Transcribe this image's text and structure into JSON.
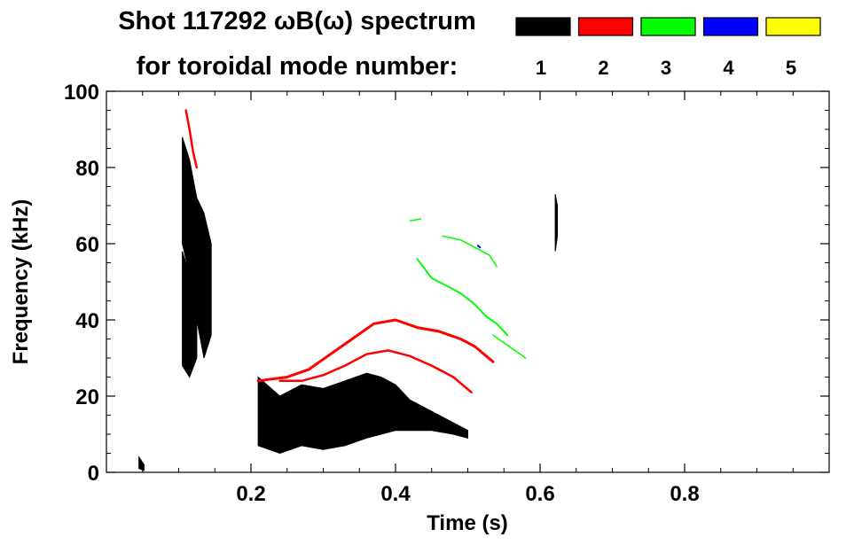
{
  "chart_data": {
    "type": "heatmap",
    "title_line1": "Shot 117292 ωB(ω) spectrum",
    "title_line2": "for toroidal mode number:",
    "xlabel": "Time (s)",
    "ylabel": "Frequency (kHz)",
    "xlim": [
      0.0,
      1.0
    ],
    "ylim": [
      0,
      100
    ],
    "x_ticks": [
      0.2,
      0.4,
      0.6,
      0.8
    ],
    "x_tick_labels": [
      "0.2",
      "0.4",
      "0.6",
      "0.8"
    ],
    "y_ticks": [
      0,
      20,
      40,
      60,
      80,
      100
    ],
    "y_tick_labels": [
      "0",
      "20",
      "40",
      "60",
      "80",
      "100"
    ],
    "legend_position": "top-right",
    "modes": [
      {
        "label": "1",
        "color": "#000000"
      },
      {
        "label": "2",
        "color": "#ff0000"
      },
      {
        "label": "3",
        "color": "#00ff00"
      },
      {
        "label": "4",
        "color": "#0000ff"
      },
      {
        "label": "5",
        "color": "#ffff00"
      }
    ],
    "grid": false,
    "features": [
      {
        "mode": "1",
        "kind": "band",
        "points": [
          [
            0.105,
            60,
            88
          ],
          [
            0.115,
            52,
            82
          ],
          [
            0.125,
            40,
            72
          ],
          [
            0.135,
            30,
            68
          ],
          [
            0.145,
            36,
            60
          ]
        ]
      },
      {
        "mode": "1",
        "kind": "band",
        "points": [
          [
            0.105,
            28,
            58
          ],
          [
            0.115,
            25,
            52
          ],
          [
            0.125,
            30,
            50
          ]
        ]
      },
      {
        "mode": "1",
        "kind": "band",
        "points": [
          [
            0.21,
            7,
            25
          ],
          [
            0.24,
            5,
            20
          ],
          [
            0.27,
            7,
            23
          ],
          [
            0.3,
            6,
            22
          ],
          [
            0.33,
            7,
            24
          ],
          [
            0.36,
            9,
            26
          ],
          [
            0.38,
            10,
            25
          ],
          [
            0.4,
            11,
            23
          ],
          [
            0.42,
            11,
            19
          ],
          [
            0.45,
            11,
            16
          ],
          [
            0.48,
            10,
            13
          ],
          [
            0.5,
            9,
            11
          ]
        ]
      },
      {
        "mode": "1",
        "kind": "band",
        "points": [
          [
            0.621,
            58,
            73
          ],
          [
            0.624,
            62,
            70
          ]
        ]
      },
      {
        "mode": "1",
        "kind": "band",
        "points": [
          [
            0.045,
            1,
            4
          ],
          [
            0.052,
            0.5,
            2
          ]
        ]
      },
      {
        "mode": "2",
        "kind": "line",
        "width": 3,
        "points": [
          [
            0.21,
            24
          ],
          [
            0.25,
            25
          ],
          [
            0.28,
            27
          ],
          [
            0.31,
            31
          ],
          [
            0.34,
            35
          ],
          [
            0.37,
            39
          ],
          [
            0.4,
            40
          ],
          [
            0.43,
            38
          ],
          [
            0.46,
            37
          ],
          [
            0.49,
            35
          ],
          [
            0.51,
            33
          ],
          [
            0.535,
            29
          ]
        ]
      },
      {
        "mode": "2",
        "kind": "line",
        "width": 2.5,
        "points": [
          [
            0.24,
            24
          ],
          [
            0.27,
            24
          ],
          [
            0.3,
            25.5
          ],
          [
            0.33,
            28
          ],
          [
            0.36,
            31
          ],
          [
            0.39,
            32
          ],
          [
            0.42,
            30.5
          ],
          [
            0.45,
            28
          ],
          [
            0.48,
            25
          ],
          [
            0.505,
            21
          ]
        ]
      },
      {
        "mode": "2",
        "kind": "line",
        "width": 2.5,
        "points": [
          [
            0.11,
            95
          ],
          [
            0.115,
            90
          ],
          [
            0.12,
            84
          ],
          [
            0.125,
            80
          ]
        ]
      },
      {
        "mode": "3",
        "kind": "line",
        "width": 1.5,
        "points": [
          [
            0.42,
            66
          ],
          [
            0.435,
            66.5
          ]
        ]
      },
      {
        "mode": "3",
        "kind": "line",
        "width": 1.5,
        "points": [
          [
            0.465,
            62
          ],
          [
            0.49,
            61
          ],
          [
            0.51,
            59
          ],
          [
            0.53,
            57
          ],
          [
            0.54,
            54
          ]
        ]
      },
      {
        "mode": "3",
        "kind": "line",
        "width": 2,
        "points": [
          [
            0.43,
            56
          ],
          [
            0.45,
            51
          ],
          [
            0.47,
            49
          ],
          [
            0.49,
            47
          ],
          [
            0.51,
            44
          ],
          [
            0.525,
            41
          ],
          [
            0.54,
            39
          ],
          [
            0.555,
            36
          ]
        ]
      },
      {
        "mode": "3",
        "kind": "line",
        "width": 1.5,
        "points": [
          [
            0.535,
            36
          ],
          [
            0.55,
            34
          ],
          [
            0.565,
            32
          ],
          [
            0.58,
            30
          ]
        ]
      },
      {
        "mode": "4",
        "kind": "line",
        "width": 2,
        "points": [
          [
            0.514,
            59.5
          ],
          [
            0.517,
            59
          ]
        ]
      }
    ]
  }
}
